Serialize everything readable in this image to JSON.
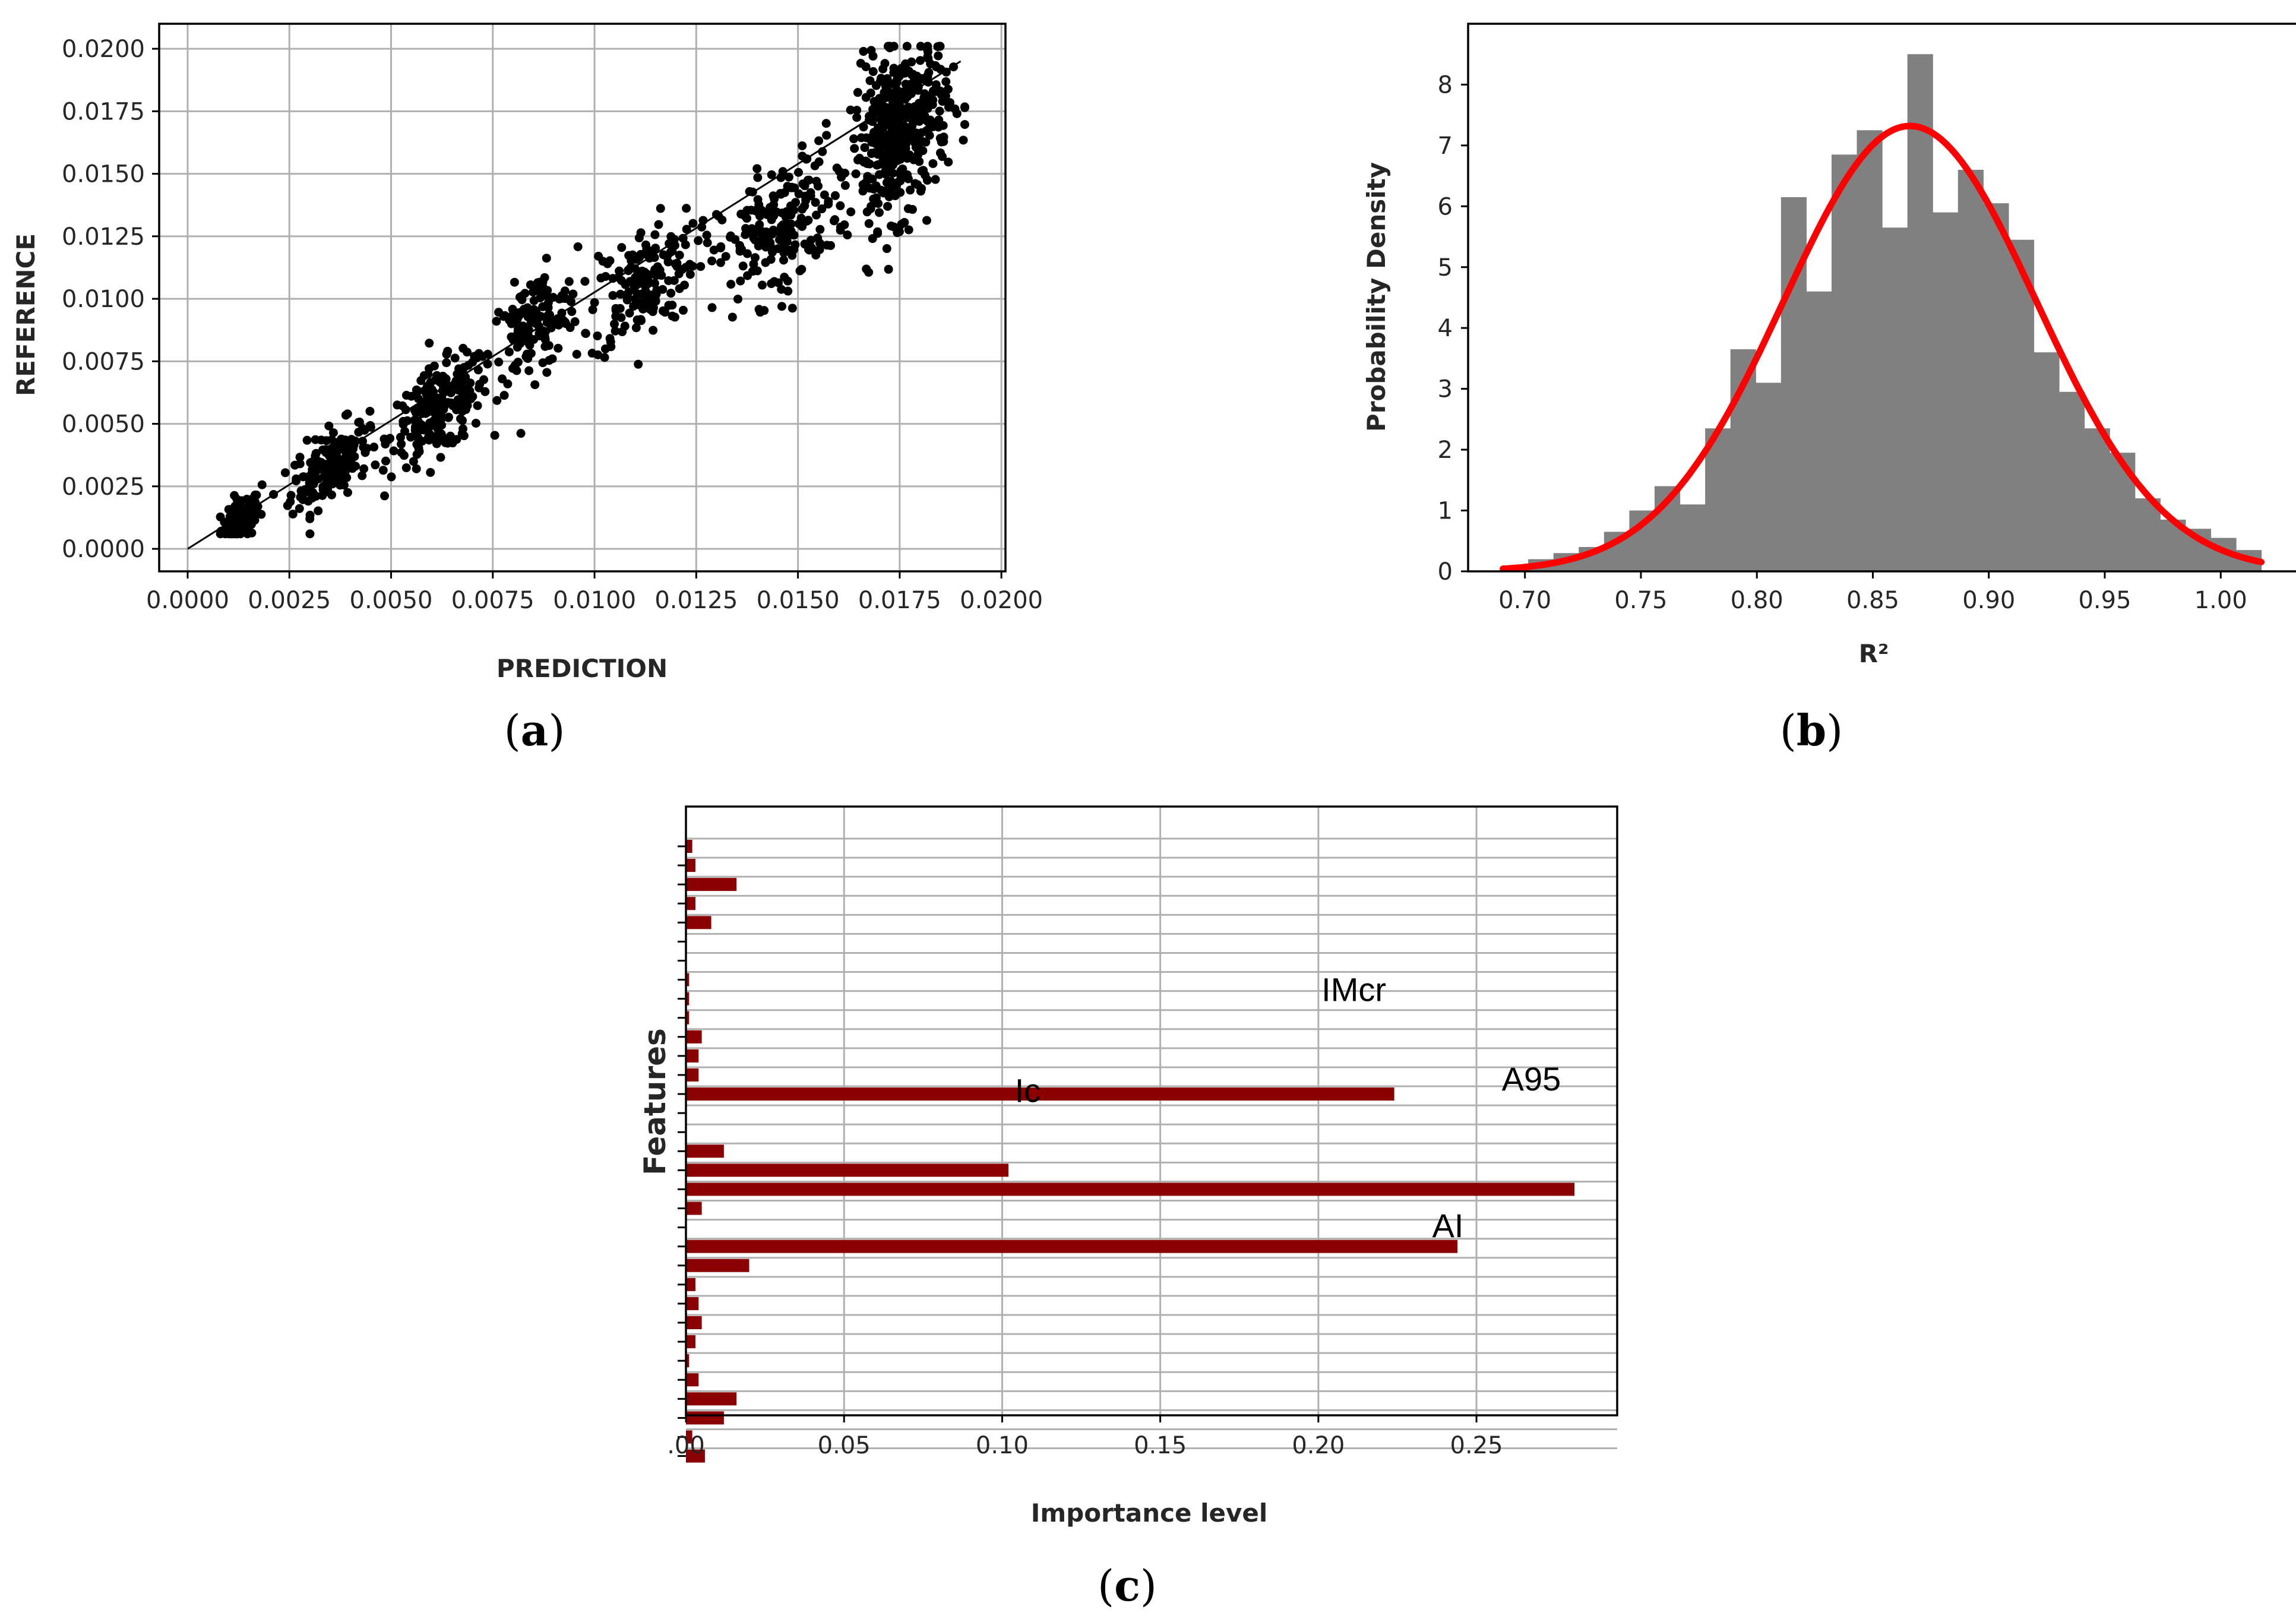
{
  "chart_data": [
    {
      "id": "a",
      "type": "scatter",
      "caption_letter": "a",
      "xlabel": "PREDICTION",
      "ylabel": "REFERENCE",
      "xlim": [
        -0.0007,
        0.0201
      ],
      "ylim": [
        -0.0009,
        0.021
      ],
      "xticks": [
        0.0,
        0.0025,
        0.005,
        0.0075,
        0.01,
        0.0125,
        0.015,
        0.0175,
        0.02
      ],
      "xtick_labels": [
        "0.0000",
        "0.0025",
        "0.0050",
        "0.0075",
        "0.0100",
        "0.0125",
        "0.0150",
        "0.0175",
        "0.0200"
      ],
      "yticks": [
        0.0,
        0.0025,
        0.005,
        0.0075,
        0.01,
        0.0125,
        0.015,
        0.0175,
        0.02
      ],
      "ytick_labels": [
        "0.0000",
        "0.0025",
        "0.0050",
        "0.0075",
        "0.0100",
        "0.0125",
        "0.0150",
        "0.0175",
        "0.0200"
      ],
      "grid": true,
      "reference_line": {
        "from": [
          0.0,
          0.0
        ],
        "to": [
          0.019,
          0.0195
        ]
      },
      "point_clusters": [
        {
          "x_center": 0.0013,
          "x_spread": 0.0004,
          "y_slope": 0.9,
          "y_spread": 0.0008,
          "count": 90
        },
        {
          "x_center": 0.0035,
          "x_spread": 0.0008,
          "y_slope": 0.95,
          "y_spread": 0.0013,
          "count": 180
        },
        {
          "x_center": 0.0062,
          "x_spread": 0.001,
          "y_slope": 0.9,
          "y_spread": 0.0016,
          "count": 220
        },
        {
          "x_center": 0.0085,
          "x_spread": 0.0009,
          "y_slope": 1.05,
          "y_spread": 0.0018,
          "count": 140
        },
        {
          "x_center": 0.0112,
          "x_spread": 0.0011,
          "y_slope": 0.95,
          "y_spread": 0.002,
          "count": 170
        },
        {
          "x_center": 0.0145,
          "x_spread": 0.0012,
          "y_slope": 0.88,
          "y_spread": 0.0024,
          "count": 200
        },
        {
          "x_center": 0.0175,
          "x_spread": 0.001,
          "y_slope": 0.95,
          "y_spread": 0.003,
          "count": 420
        }
      ]
    },
    {
      "id": "b",
      "type": "histogram",
      "caption_letter": "b",
      "xlabel": "R²",
      "ylabel": "Probability Density",
      "xlim": [
        0.6755,
        1.0345
      ],
      "ylim": [
        0,
        9.0
      ],
      "xticks": [
        0.7,
        0.75,
        0.8,
        0.85,
        0.9,
        0.95,
        1.0
      ],
      "xtick_labels": [
        "0.70",
        "0.75",
        "0.80",
        "0.85",
        "0.90",
        "0.95",
        "1.00"
      ],
      "yticks": [
        0,
        1,
        2,
        3,
        4,
        5,
        6,
        7,
        8
      ],
      "ytick_labels": [
        "0",
        "1",
        "2",
        "3",
        "4",
        "5",
        "6",
        "7",
        "8"
      ],
      "bin_start": 0.6905,
      "bin_width": 0.0109,
      "densities": [
        0.1,
        0.2,
        0.3,
        0.4,
        0.65,
        1.0,
        1.4,
        1.1,
        2.35,
        3.65,
        3.1,
        6.15,
        4.6,
        6.85,
        7.25,
        5.65,
        8.5,
        5.9,
        6.6,
        6.05,
        5.45,
        3.6,
        2.95,
        2.35,
        1.95,
        1.2,
        0.85,
        0.7,
        0.55,
        0.35
      ],
      "bar_color": "#808080",
      "fit": {
        "type": "normal",
        "mean": 0.866,
        "std": 0.0545,
        "color": "#ff0000"
      }
    },
    {
      "id": "c",
      "type": "bar",
      "orientation": "horizontal",
      "caption_letter": "c",
      "xlabel": "Importance level",
      "ylabel": "Features",
      "xlim": [
        0,
        0.2945
      ],
      "xticks": [
        0.0,
        0.05,
        0.1,
        0.15,
        0.2,
        0.25
      ],
      "xtick_labels": [
        ".00",
        "0.05",
        "0.10",
        "0.15",
        "0.20",
        "0.25"
      ],
      "bar_color": "#8b0000",
      "values": [
        0.002,
        0.003,
        0.016,
        0.003,
        0.008,
        0.0,
        0.0,
        0.001,
        0.001,
        0.001,
        0.005,
        0.004,
        0.004,
        0.224,
        0.0,
        0.0,
        0.012,
        0.102,
        0.281,
        0.005,
        0.0,
        0.244,
        0.02,
        0.003,
        0.004,
        0.005,
        0.003,
        0.001,
        0.004,
        0.016,
        0.012,
        0.002,
        0.006
      ],
      "annotations": [
        {
          "text": "IMcr",
          "x": 0.201,
          "row": 7.9
        },
        {
          "text": "A95",
          "x": 0.258,
          "row": 12.6
        },
        {
          "text": "Ic",
          "x": 0.104,
          "row": 13.2
        },
        {
          "text": "AI",
          "x": 0.236,
          "row": 20.3
        }
      ]
    }
  ]
}
